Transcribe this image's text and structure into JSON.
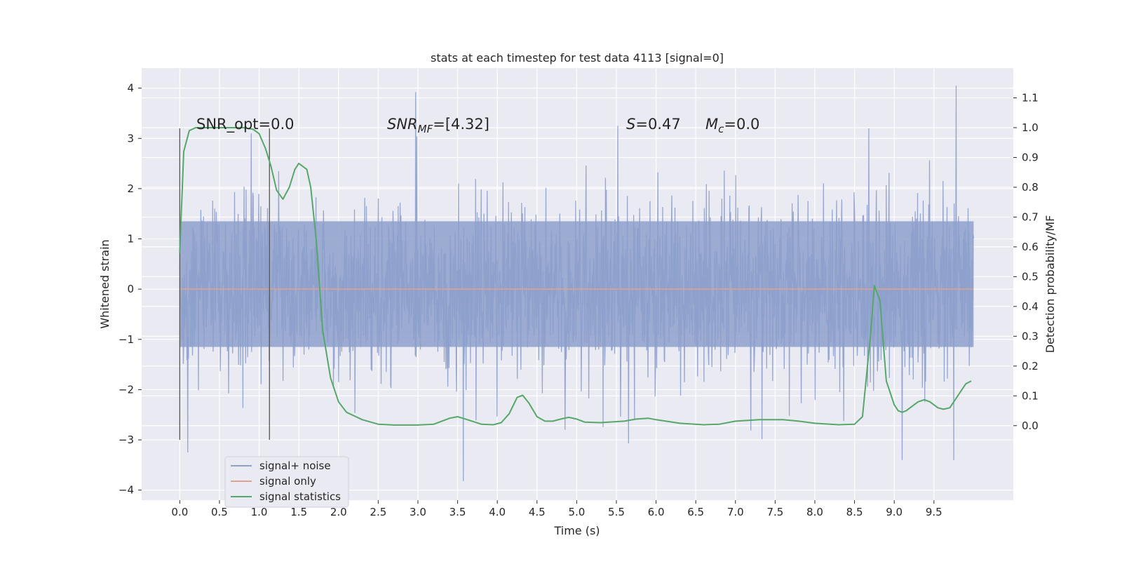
{
  "chart_data": {
    "type": "line",
    "title": "stats at each timestep for test data 4113 [signal=0]",
    "xlabel": "Time (s)",
    "ylabel": "Whitened strain",
    "ylabel_right": "Detection probability/MF",
    "xlim": [
      -0.48,
      10.5
    ],
    "ylim": [
      -4.2,
      4.4
    ],
    "ylim_right": [
      -0.25,
      1.2
    ],
    "x_ticks": [
      "0.0",
      "0.5",
      "1.0",
      "1.5",
      "2.0",
      "2.5",
      "3.0",
      "3.5",
      "4.0",
      "4.5",
      "5.0",
      "5.5",
      "6.0",
      "6.5",
      "7.0",
      "7.5",
      "8.0",
      "8.5",
      "9.0",
      "9.5"
    ],
    "y_ticks": [
      "−4",
      "−3",
      "−2",
      "−1",
      "0",
      "1",
      "2",
      "3",
      "4"
    ],
    "y_ticks_right": [
      "0.0",
      "0.1",
      "0.2",
      "0.3",
      "0.4",
      "0.5",
      "0.6",
      "0.7",
      "0.8",
      "0.9",
      "1.0",
      "1.1"
    ],
    "grid": true,
    "legend_position": "lower-left",
    "annotations": {
      "snr_opt": "SNR_opt=0.0",
      "snr_mf_main": "SNR",
      "snr_mf_sub": "MF",
      "snr_mf_value": "=[4.32]",
      "s_main": "S",
      "s_value": "=0.47",
      "mc_main": "M",
      "mc_sub": "c",
      "mc_value": "=0.0"
    },
    "vertical_lines_x": [
      0.0,
      1.13
    ],
    "vertical_lines_yrange": [
      -3.0,
      3.2
    ],
    "series": [
      {
        "name": "signal+ noise",
        "color": "#8da0cb",
        "axis": "left",
        "x_range": [
          0.0,
          10.0
        ],
        "core_band": [
          -1.15,
          1.35
        ],
        "typical_amplitude": [
          -2.3,
          2.5
        ],
        "extremes": [
          {
            "x": 2.97,
            "y": 3.92
          },
          {
            "x": 9.78,
            "y": 4.05
          },
          {
            "x": 8.68,
            "y": 3.2
          },
          {
            "x": 5.52,
            "y": 3.25
          },
          {
            "x": 0.9,
            "y": 3.1
          },
          {
            "x": 3.57,
            "y": -3.82
          },
          {
            "x": 0.9,
            "y": -3.5
          },
          {
            "x": 9.75,
            "y": -3.4
          },
          {
            "x": 0.1,
            "y": -3.25
          },
          {
            "x": 9.1,
            "y": -3.4
          },
          {
            "x": 4.85,
            "y": -2.8
          }
        ]
      },
      {
        "name": "signal only",
        "color": "#e5a08a",
        "axis": "left",
        "x": [
          0.0,
          10.0
        ],
        "y": [
          0.0,
          0.0
        ]
      },
      {
        "name": "signal statistics",
        "color": "#55a868",
        "axis": "right",
        "x": [
          0.0,
          0.05,
          0.12,
          0.2,
          0.35,
          0.5,
          0.65,
          0.8,
          0.92,
          1.0,
          1.08,
          1.15,
          1.22,
          1.3,
          1.38,
          1.45,
          1.5,
          1.6,
          1.65,
          1.72,
          1.8,
          1.9,
          2.0,
          2.1,
          2.3,
          2.5,
          2.7,
          3.0,
          3.2,
          3.4,
          3.5,
          3.6,
          3.8,
          3.95,
          4.05,
          4.15,
          4.25,
          4.32,
          4.4,
          4.5,
          4.6,
          4.7,
          4.8,
          4.9,
          5.0,
          5.1,
          5.3,
          5.6,
          5.75,
          5.9,
          6.0,
          6.3,
          6.6,
          6.8,
          7.0,
          7.3,
          7.6,
          7.8,
          8.0,
          8.3,
          8.5,
          8.6,
          8.7,
          8.75,
          8.82,
          8.9,
          9.0,
          9.05,
          9.1,
          9.15,
          9.2,
          9.3,
          9.38,
          9.45,
          9.55,
          9.62,
          9.7,
          9.8,
          9.9,
          9.97
        ],
        "y": [
          0.58,
          0.92,
          0.99,
          1.0,
          1.0,
          1.0,
          1.0,
          1.0,
          0.995,
          0.98,
          0.93,
          0.87,
          0.79,
          0.76,
          0.8,
          0.86,
          0.88,
          0.86,
          0.8,
          0.62,
          0.32,
          0.16,
          0.08,
          0.045,
          0.02,
          0.005,
          0.002,
          0.002,
          0.005,
          0.025,
          0.03,
          0.022,
          0.005,
          0.003,
          0.01,
          0.04,
          0.095,
          0.102,
          0.075,
          0.03,
          0.015,
          0.015,
          0.022,
          0.028,
          0.022,
          0.012,
          0.01,
          0.015,
          0.022,
          0.025,
          0.02,
          0.008,
          0.003,
          0.005,
          0.015,
          0.02,
          0.02,
          0.015,
          0.008,
          0.003,
          0.005,
          0.03,
          0.3,
          0.47,
          0.42,
          0.15,
          0.07,
          0.05,
          0.045,
          0.05,
          0.06,
          0.08,
          0.087,
          0.08,
          0.06,
          0.055,
          0.06,
          0.1,
          0.14,
          0.15
        ]
      }
    ]
  }
}
